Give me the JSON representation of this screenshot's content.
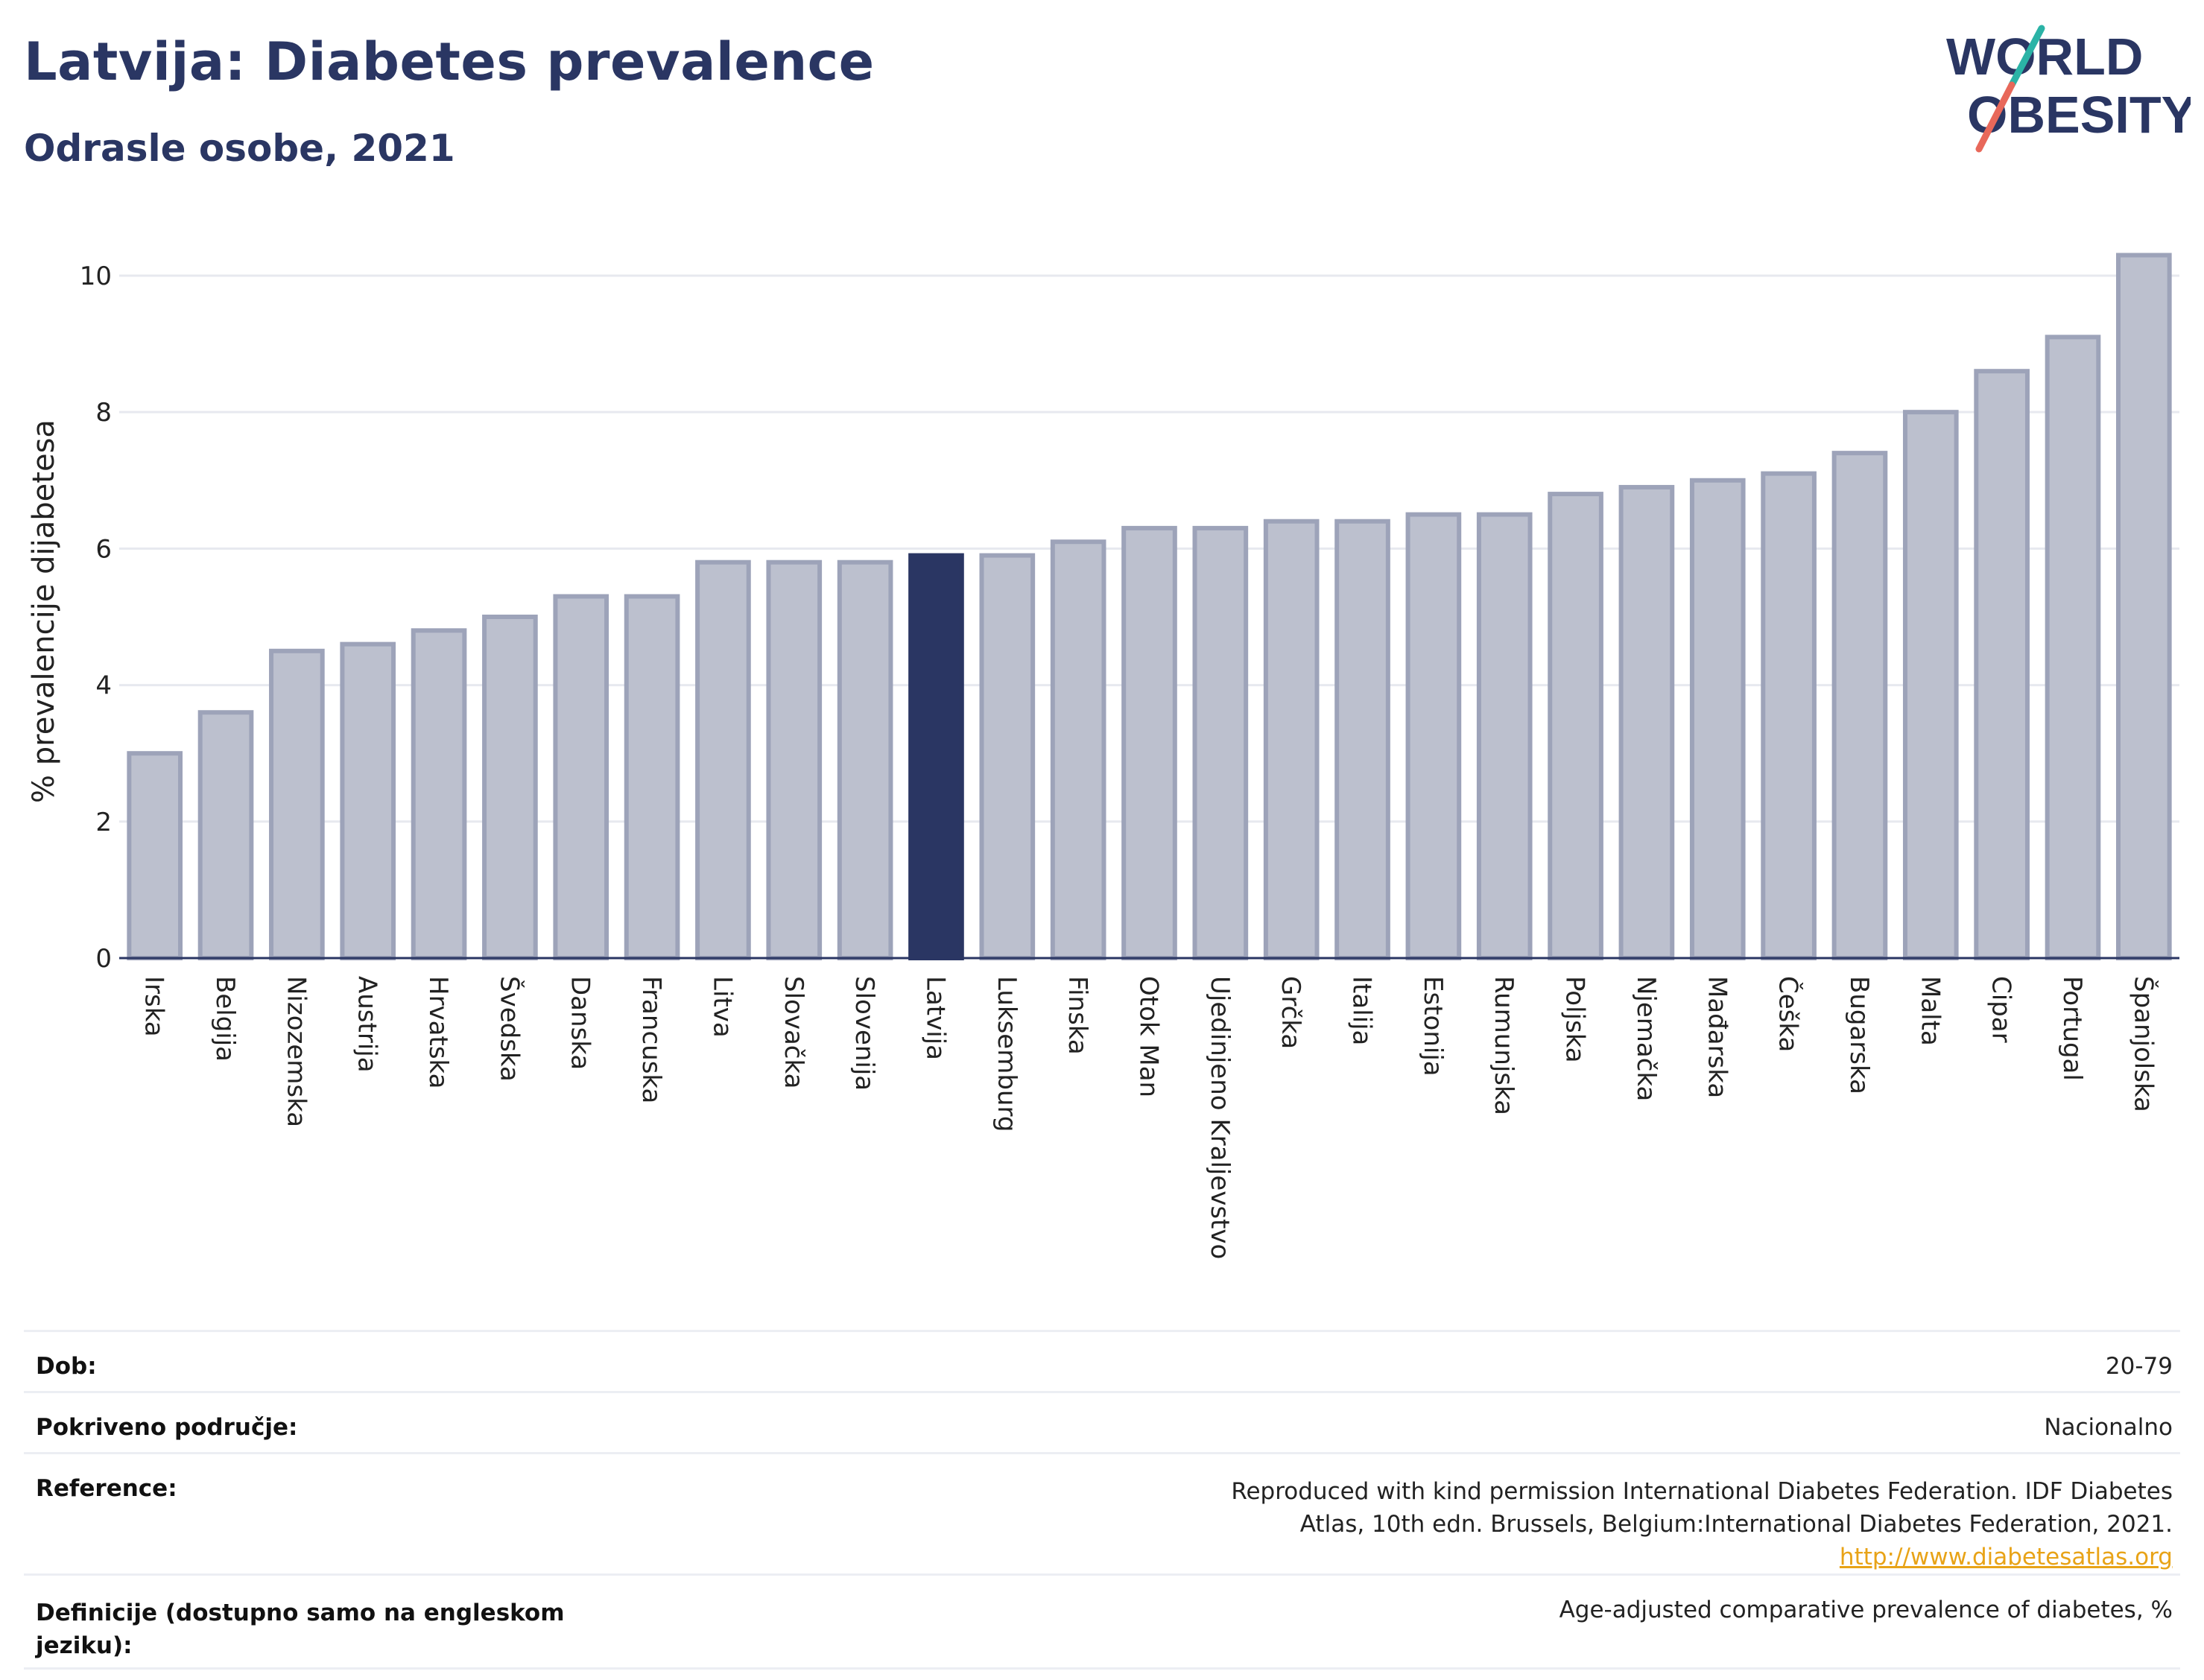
{
  "title": "Latvija: Diabetes prevalence",
  "subtitle": "Odrasle osobe, 2021",
  "logo": {
    "line1": "WORLD",
    "line2": "OBESITY"
  },
  "colors": {
    "brand_navy": "#2a3663",
    "bar_default": "#bcc0ce",
    "bar_stroke": "#9da3b9",
    "bar_highlight": "#2a3663",
    "logo_teal": "#2bb3a6",
    "logo_coral": "#e8685a",
    "link": "#e8a317"
  },
  "chart_data": {
    "type": "bar",
    "ylabel": "% prevalencije dijabetesa",
    "xlabel": "",
    "ylim": [
      0,
      10.6
    ],
    "yticks": [
      0,
      2,
      4,
      6,
      8,
      10
    ],
    "grid": true,
    "highlight": "Latvija",
    "categories": [
      "Irska",
      "Belgija",
      "Nizozemska",
      "Austrija",
      "Hrvatska",
      "Švedska",
      "Danska",
      "Francuska",
      "Litva",
      "Slovačka",
      "Slovenija",
      "Latvija",
      "Luksemburg",
      "Finska",
      "Otok Man",
      "Ujedinjeno Kraljevstvo",
      "Grčka",
      "Italija",
      "Estonija",
      "Rumunjska",
      "Poljska",
      "Njemačka",
      "Mađarska",
      "Češka",
      "Bugarska",
      "Malta",
      "Cipar",
      "Portugal",
      "Španjolska"
    ],
    "values": [
      3.0,
      3.6,
      4.5,
      4.6,
      4.8,
      5.0,
      5.3,
      5.3,
      5.8,
      5.8,
      5.8,
      5.9,
      5.9,
      6.1,
      6.3,
      6.3,
      6.4,
      6.4,
      6.5,
      6.5,
      6.8,
      6.9,
      7.0,
      7.1,
      7.4,
      8.0,
      8.6,
      9.1,
      10.3
    ]
  },
  "meta": [
    {
      "label": "Dob:",
      "value": "20-79"
    },
    {
      "label": "Pokriveno područje:",
      "value": "Nacionalno"
    },
    {
      "label": "Reference:",
      "value": "Reproduced with kind permission International Diabetes Federation.  IDF Diabetes Atlas, 10th edn. Brussels, Belgium:International Diabetes Federation, 2021.",
      "link": "http://www.diabetesatlas.org"
    },
    {
      "label": "Definicije (dostupno samo na engleskom jeziku):",
      "value": "Age-adjusted comparative prevalence of diabetes, %"
    }
  ]
}
